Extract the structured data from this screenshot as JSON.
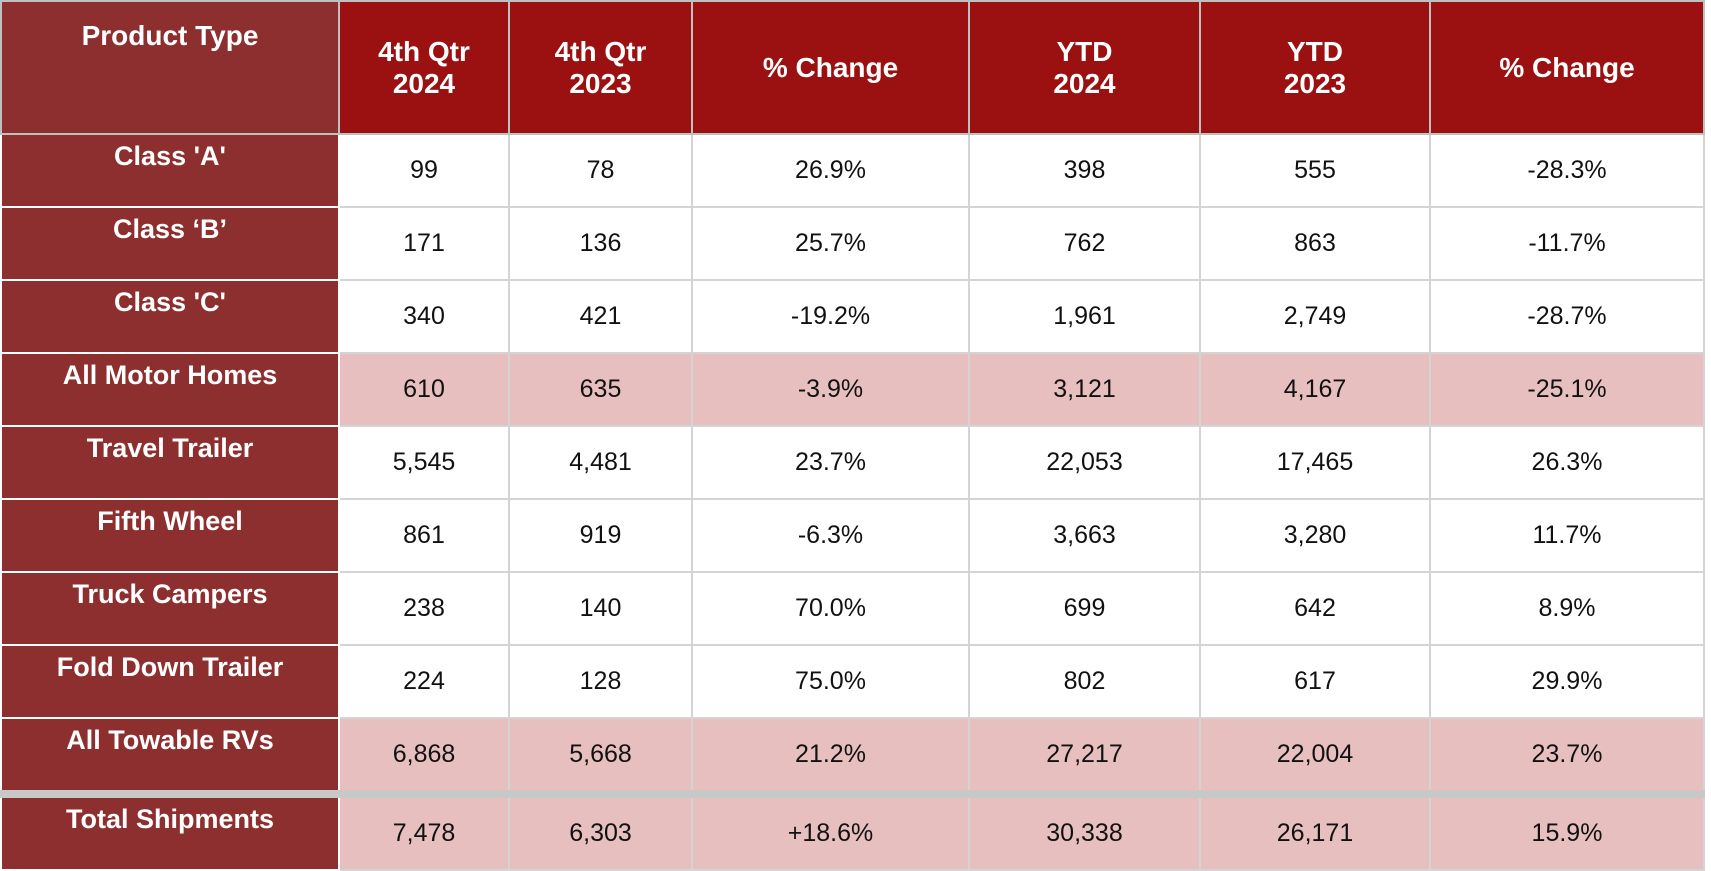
{
  "table": {
    "header": [
      "Product Type",
      "4th Qtr\n2024",
      "4th Qtr\n2023",
      "% Change",
      "YTD\n2024",
      "YTD\n2023",
      "% Change"
    ],
    "rows": [
      [
        "Class 'A'",
        "99",
        "78",
        "26.9%",
        "398",
        "555",
        "-28.3%"
      ],
      [
        "Class ‘B’",
        "171",
        "136",
        "25.7%",
        "762",
        "863",
        "-11.7%"
      ],
      [
        "Class 'C'",
        "340",
        "421",
        "-19.2%",
        "1,961",
        "2,749",
        "-28.7%"
      ],
      [
        "All Motor Homes",
        "610",
        "635",
        "-3.9%",
        "3,121",
        "4,167",
        "-25.1%"
      ],
      [
        "Travel Trailer",
        "5,545",
        "4,481",
        "23.7%",
        "22,053",
        "17,465",
        "26.3%"
      ],
      [
        "Fifth Wheel",
        "861",
        "919",
        "-6.3%",
        "3,663",
        "3,280",
        "11.7%"
      ],
      [
        "Truck Campers",
        "238",
        "140",
        "70.0%",
        "699",
        "642",
        "8.9%"
      ],
      [
        "Fold Down Trailer",
        "224",
        "128",
        "75.0%",
        "802",
        "617",
        "29.9%"
      ],
      [
        "All Towable RVs",
        "6,868",
        "5,668",
        "21.2%",
        "27,217",
        "22,004",
        "23.7%"
      ],
      [
        "Total Shipments",
        "7,478",
        "6,303",
        "+18.6%",
        "30,338",
        "26,171",
        "15.9%"
      ]
    ]
  }
}
